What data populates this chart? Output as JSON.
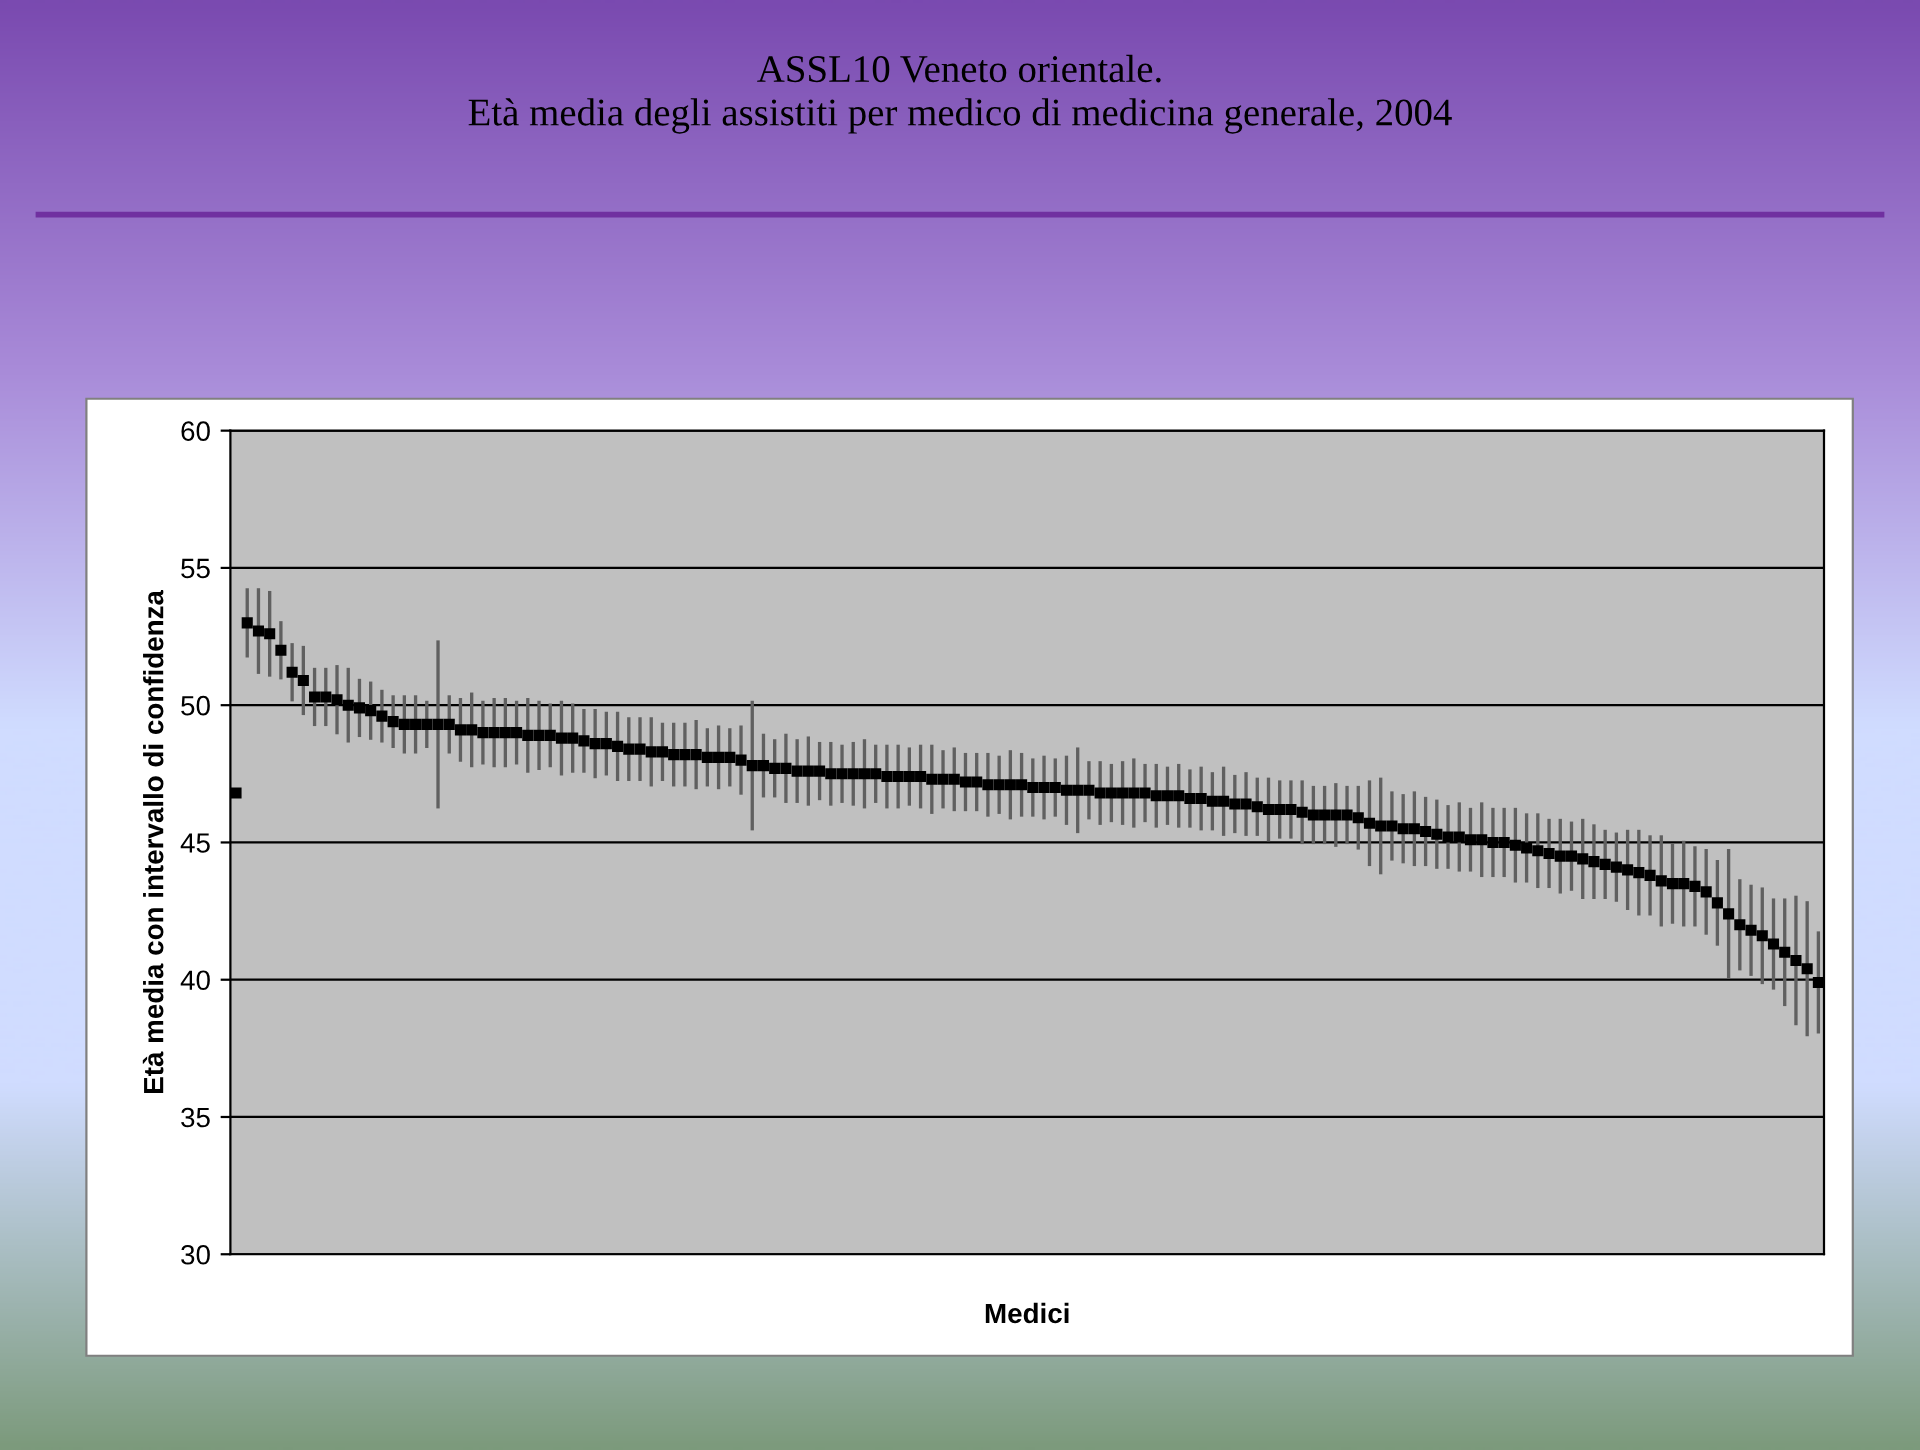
{
  "chart_data": {
    "type": "scatter",
    "title": "ASSL10 Veneto orientale.\nEtà media degli assistiti per medico di medicina generale, 2004",
    "xlabel": "Medici",
    "ylabel": "Età media con intervallo di confidenza",
    "categories": [
      null,
      null,
      null,
      null,
      null,
      null,
      null,
      null,
      null,
      null,
      null,
      null,
      null,
      null,
      null,
      null,
      null,
      null,
      null,
      null,
      null,
      null,
      null,
      null,
      null,
      null,
      null,
      null,
      null,
      null,
      null,
      null,
      null,
      null,
      null,
      null,
      null,
      null,
      null,
      null,
      null,
      null,
      null,
      null,
      null,
      null,
      null,
      null,
      null,
      null,
      null,
      null,
      null,
      null,
      null,
      null,
      null,
      null,
      null,
      null,
      null,
      null,
      null,
      null,
      null,
      null,
      null,
      null,
      null,
      null,
      null,
      null,
      null,
      null,
      null,
      null,
      null,
      null,
      null,
      null,
      null,
      null,
      null,
      null,
      null,
      null,
      null,
      null,
      null,
      null,
      null,
      null,
      null,
      null,
      null,
      null,
      null,
      null,
      null,
      null,
      null,
      null,
      null,
      null,
      null,
      null,
      null,
      null,
      null,
      null,
      null,
      null,
      null,
      null,
      null,
      null,
      null,
      null,
      null,
      null,
      null,
      null,
      null,
      null,
      null,
      null,
      null,
      null,
      null,
      null,
      null,
      null,
      null,
      null,
      null,
      null,
      null,
      null,
      null,
      null,
      null,
      null
    ],
    "values": [
      46.8,
      53.0,
      52.7,
      52.6,
      52.0,
      51.2,
      50.9,
      50.3,
      50.3,
      50.2,
      50.0,
      49.9,
      49.8,
      49.6,
      49.4,
      49.3,
      49.3,
      49.3,
      49.3,
      49.3,
      49.1,
      49.1,
      49.0,
      49.0,
      49.0,
      49.0,
      48.9,
      48.9,
      48.9,
      48.8,
      48.8,
      48.7,
      48.6,
      48.6,
      48.5,
      48.4,
      48.4,
      48.3,
      48.3,
      48.2,
      48.2,
      48.2,
      48.1,
      48.1,
      48.1,
      48.0,
      47.8,
      47.8,
      47.7,
      47.7,
      47.6,
      47.6,
      47.6,
      47.5,
      47.5,
      47.5,
      47.5,
      47.5,
      47.4,
      47.4,
      47.4,
      47.4,
      47.3,
      47.3,
      47.3,
      47.2,
      47.2,
      47.1,
      47.1,
      47.1,
      47.1,
      47.0,
      47.0,
      47.0,
      46.9,
      46.9,
      46.9,
      46.8,
      46.8,
      46.8,
      46.8,
      46.8,
      46.7,
      46.7,
      46.7,
      46.6,
      46.6,
      46.5,
      46.5,
      46.4,
      46.4,
      46.3,
      46.2,
      46.2,
      46.2,
      46.1,
      46.0,
      46.0,
      46.0,
      46.0,
      45.9,
      45.7,
      45.6,
      45.6,
      45.5,
      45.5,
      45.4,
      45.3,
      45.2,
      45.2,
      45.1,
      45.1,
      45.0,
      45.0,
      44.9,
      44.8,
      44.7,
      44.6,
      44.5,
      44.5,
      44.4,
      44.3,
      44.2,
      44.1,
      44.0,
      43.9,
      43.8,
      43.6,
      43.5,
      43.5,
      43.4,
      43.2,
      42.8,
      42.4,
      42.0,
      41.8,
      41.6,
      41.3,
      41.0,
      40.7,
      40.4,
      39.9
    ],
    "errors": [
      null,
      1.2,
      1.5,
      1.5,
      1.0,
      1.0,
      1.2,
      1.0,
      1.0,
      1.2,
      1.3,
      1.0,
      1.0,
      0.9,
      0.9,
      1.0,
      1.0,
      0.8,
      3.0,
      1.0,
      1.1,
      1.3,
      1.1,
      1.2,
      1.2,
      1.1,
      1.3,
      1.2,
      1.1,
      1.3,
      1.2,
      1.1,
      1.2,
      1.1,
      1.2,
      1.1,
      1.1,
      1.2,
      1.0,
      1.1,
      1.1,
      1.2,
      1.0,
      1.1,
      1.0,
      1.2,
      2.3,
      1.1,
      1.0,
      1.2,
      1.1,
      1.2,
      1.0,
      1.1,
      1.0,
      1.1,
      1.2,
      1.0,
      1.1,
      1.1,
      1.0,
      1.1,
      1.2,
      1.0,
      1.1,
      1.0,
      1.0,
      1.1,
      1.0,
      1.2,
      1.1,
      1.0,
      1.1,
      1.0,
      1.2,
      1.5,
      1.0,
      1.1,
      1.0,
      1.1,
      1.2,
      1.0,
      1.1,
      1.0,
      1.1,
      1.0,
      1.1,
      1.0,
      1.2,
      1.0,
      1.1,
      1.0,
      1.1,
      1.0,
      1.0,
      1.1,
      1.0,
      1.0,
      1.1,
      1.0,
      1.1,
      1.5,
      1.7,
      1.2,
      1.2,
      1.3,
      1.2,
      1.2,
      1.1,
      1.2,
      1.1,
      1.3,
      1.2,
      1.2,
      1.3,
      1.2,
      1.3,
      1.2,
      1.3,
      1.2,
      1.4,
      1.3,
      1.2,
      1.2,
      1.4,
      1.5,
      1.4,
      1.6,
      1.4,
      1.5,
      1.4,
      1.5,
      1.5,
      2.3,
      1.6,
      1.6,
      1.7,
      1.6,
      1.9,
      2.3,
      2.4,
      1.8
    ],
    "color": "#000000",
    "ylim": [
      30,
      60
    ],
    "yticks": [
      30,
      35,
      40,
      45,
      50,
      55,
      60
    ],
    "grid": "y",
    "marker": "square",
    "legend": false
  }
}
